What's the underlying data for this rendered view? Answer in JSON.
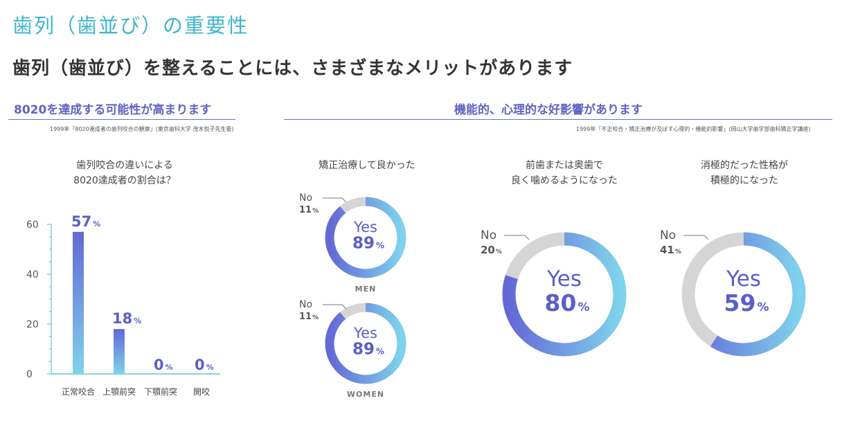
{
  "header": {
    "title": "歯列（歯並び）の重要性",
    "subtitle": "歯列（歯並び）を整えることには、さまざまなメリットがあります"
  },
  "left_section": {
    "heading": "8020を達成する可能性が高まります",
    "source": "1999年「8020達成者の歯列咬合の観察」(東京歯科大学 茂木悦子先生著)",
    "chart_title": "歯列咬合の違いによる\n8020達成者の割合は？"
  },
  "right_section": {
    "heading": "機能的、心理的な好影響があります",
    "source": "1999年「不正咬合・矯正治療が及ぼす心理的・機能的影響」(岡山大学歯学部歯科矯正学講座)",
    "q1_title": "矯正治療して良かった",
    "q2_title": "前歯または奥歯で\n良く噛めるようになった",
    "q3_title": "消極的だった性格が\n積極的になった"
  },
  "labels": {
    "yes": "Yes",
    "no": "No",
    "percent": "%"
  },
  "colors": {
    "title": "#3cb6cc",
    "heading": "#5f63c4",
    "grad_top": "#6468d6",
    "grad_bottom": "#7fd3ec",
    "no_grey": "#d5d5d5",
    "pct_text": "#5a5fc7"
  },
  "chart_data": [
    {
      "type": "bar",
      "title": "歯列咬合の違いによる 8020達成者の割合は？",
      "categories": [
        "正常咬合",
        "上顎前突",
        "下顎前突",
        "開咬"
      ],
      "values": [
        57,
        18,
        0,
        0
      ],
      "value_labels": [
        "57",
        "18",
        "0",
        "0"
      ],
      "ylim": [
        0,
        60
      ],
      "yticks": [
        0,
        20,
        40,
        60
      ],
      "grid": false
    },
    {
      "type": "pie",
      "title": "矯正治療して良かった",
      "group": "MEN",
      "categories": [
        "Yes",
        "No"
      ],
      "values": [
        89,
        11
      ]
    },
    {
      "type": "pie",
      "title": "矯正治療して良かった",
      "group": "WOMEN",
      "categories": [
        "Yes",
        "No"
      ],
      "values": [
        89,
        11
      ]
    },
    {
      "type": "pie",
      "title": "前歯または奥歯で 良く噛めるようになった",
      "categories": [
        "Yes",
        "No"
      ],
      "values": [
        80,
        20
      ]
    },
    {
      "type": "pie",
      "title": "消極的だった性格が 積極的になった",
      "categories": [
        "Yes",
        "No"
      ],
      "values": [
        59,
        41
      ]
    }
  ]
}
